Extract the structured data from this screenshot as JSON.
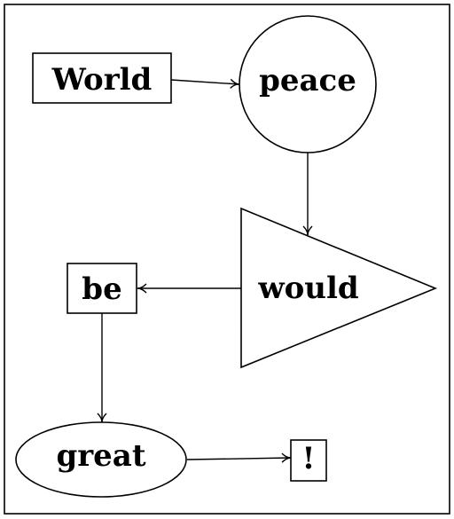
{
  "nodes": {
    "world": {
      "label": "World",
      "shape": "rectangle"
    },
    "peace": {
      "label": "peace",
      "shape": "circle"
    },
    "would": {
      "label": "would",
      "shape": "triangle"
    },
    "be": {
      "label": "be",
      "shape": "rectangle"
    },
    "great": {
      "label": "great",
      "shape": "ellipse"
    },
    "exclaim": {
      "label": "!",
      "shape": "rectangle"
    }
  },
  "edges": [
    {
      "from": "World",
      "to": "peace"
    },
    {
      "from": "peace",
      "to": "would"
    },
    {
      "from": "would",
      "to": "be"
    },
    {
      "from": "be",
      "to": "great"
    },
    {
      "from": "great",
      "to": "!"
    }
  ],
  "colors": {
    "stroke": "#000000",
    "background": "#ffffff"
  }
}
